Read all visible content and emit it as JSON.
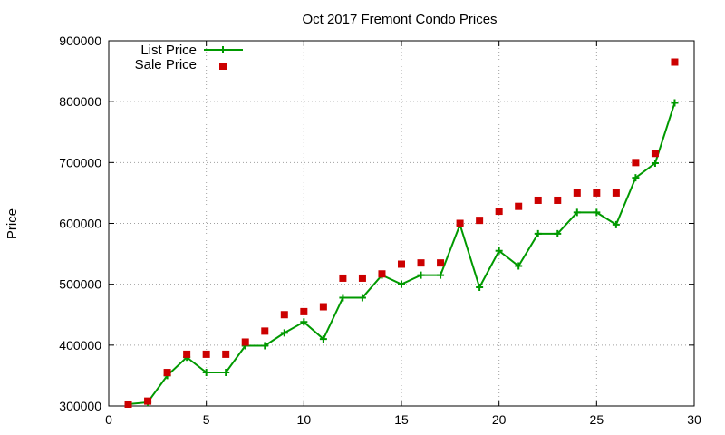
{
  "chart_data": {
    "type": "line",
    "title": "Oct 2017 Fremont Condo Prices",
    "xlabel": "",
    "ylabel": "Price",
    "xlim": [
      0,
      30
    ],
    "ylim": [
      300000,
      900000
    ],
    "xticks": [
      0,
      5,
      10,
      15,
      20,
      25,
      30
    ],
    "yticks": [
      300000,
      400000,
      500000,
      600000,
      700000,
      800000,
      900000
    ],
    "grid": true,
    "legend_position": "top-left",
    "x": [
      1,
      2,
      3,
      4,
      5,
      6,
      7,
      8,
      9,
      10,
      11,
      12,
      13,
      14,
      15,
      16,
      17,
      18,
      19,
      20,
      21,
      22,
      23,
      24,
      25,
      26,
      27,
      28,
      29
    ],
    "series": [
      {
        "name": "List Price",
        "style": "line+cross",
        "color": "#009900",
        "values": [
          303000,
          306000,
          350000,
          380000,
          355000,
          355000,
          399000,
          399000,
          420000,
          438000,
          410000,
          478000,
          478000,
          515000,
          500000,
          515000,
          515000,
          598000,
          495000,
          555000,
          530000,
          583000,
          583000,
          618000,
          618000,
          598000,
          675000,
          699000,
          798000
        ]
      },
      {
        "name": "Sale Price",
        "style": "square-marker",
        "color": "#cc0000",
        "values": [
          303000,
          308000,
          355000,
          385000,
          385000,
          385000,
          405000,
          423000,
          450000,
          455000,
          463000,
          510000,
          510000,
          517000,
          533000,
          535000,
          535000,
          600000,
          605000,
          620000,
          628000,
          638000,
          638000,
          650000,
          650000,
          650000,
          700000,
          715000,
          865000
        ]
      }
    ]
  }
}
